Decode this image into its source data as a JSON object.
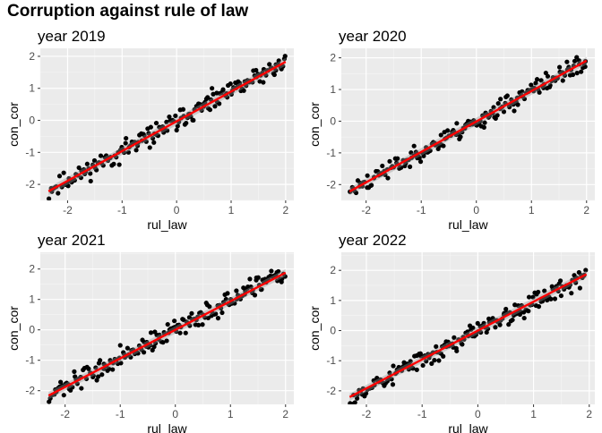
{
  "title": "Corruption against rule of law",
  "chart_data": [
    {
      "type": "scatter",
      "title": "year 2019",
      "xlabel": "rul_law",
      "ylabel": "con_cor",
      "xlim": [
        -2.5,
        2.15
      ],
      "ylim": [
        -2.5,
        2.25
      ],
      "xticks": [
        -2,
        -1,
        0,
        1,
        2
      ],
      "yticks": [
        -2,
        -1,
        0,
        1,
        2
      ],
      "fit": {
        "slope": 0.93,
        "intercept": -0.03,
        "x_range": [
          -2.35,
          2.0
        ]
      },
      "seed": 11,
      "n": 185,
      "noise": 0.26
    },
    {
      "type": "scatter",
      "title": "year 2020",
      "xlabel": "rul_law",
      "ylabel": "con_cor",
      "xlim": [
        -2.45,
        2.15
      ],
      "ylim": [
        -2.5,
        2.3
      ],
      "xticks": [
        -2,
        -1,
        0,
        1,
        2
      ],
      "yticks": [
        -2,
        -1,
        0,
        1,
        2
      ],
      "fit": {
        "slope": 0.96,
        "intercept": -0.01,
        "x_range": [
          -2.3,
          2.0
        ]
      },
      "seed": 23,
      "n": 185,
      "noise": 0.25
    },
    {
      "type": "scatter",
      "title": "year 2021",
      "xlabel": "rul_law",
      "ylabel": "con_cor",
      "xlim": [
        -2.45,
        2.15
      ],
      "ylim": [
        -2.45,
        2.55
      ],
      "xticks": [
        -2,
        -1,
        0,
        1,
        2
      ],
      "yticks": [
        -2,
        -1,
        0,
        1,
        2
      ],
      "fit": {
        "slope": 0.94,
        "intercept": 0.0,
        "x_range": [
          -2.3,
          2.0
        ]
      },
      "seed": 37,
      "n": 185,
      "noise": 0.27
    },
    {
      "type": "scatter",
      "title": "year 2022",
      "xlabel": "rul_law",
      "ylabel": "con_cor",
      "xlim": [
        -2.45,
        2.1
      ],
      "ylim": [
        -2.45,
        2.6
      ],
      "xticks": [
        -2,
        -1,
        0,
        1,
        2
      ],
      "yticks": [
        -2,
        -1,
        0,
        1,
        2
      ],
      "fit": {
        "slope": 0.96,
        "intercept": 0.0,
        "x_range": [
          -2.3,
          1.95
        ]
      },
      "seed": 53,
      "n": 185,
      "noise": 0.28
    }
  ]
}
